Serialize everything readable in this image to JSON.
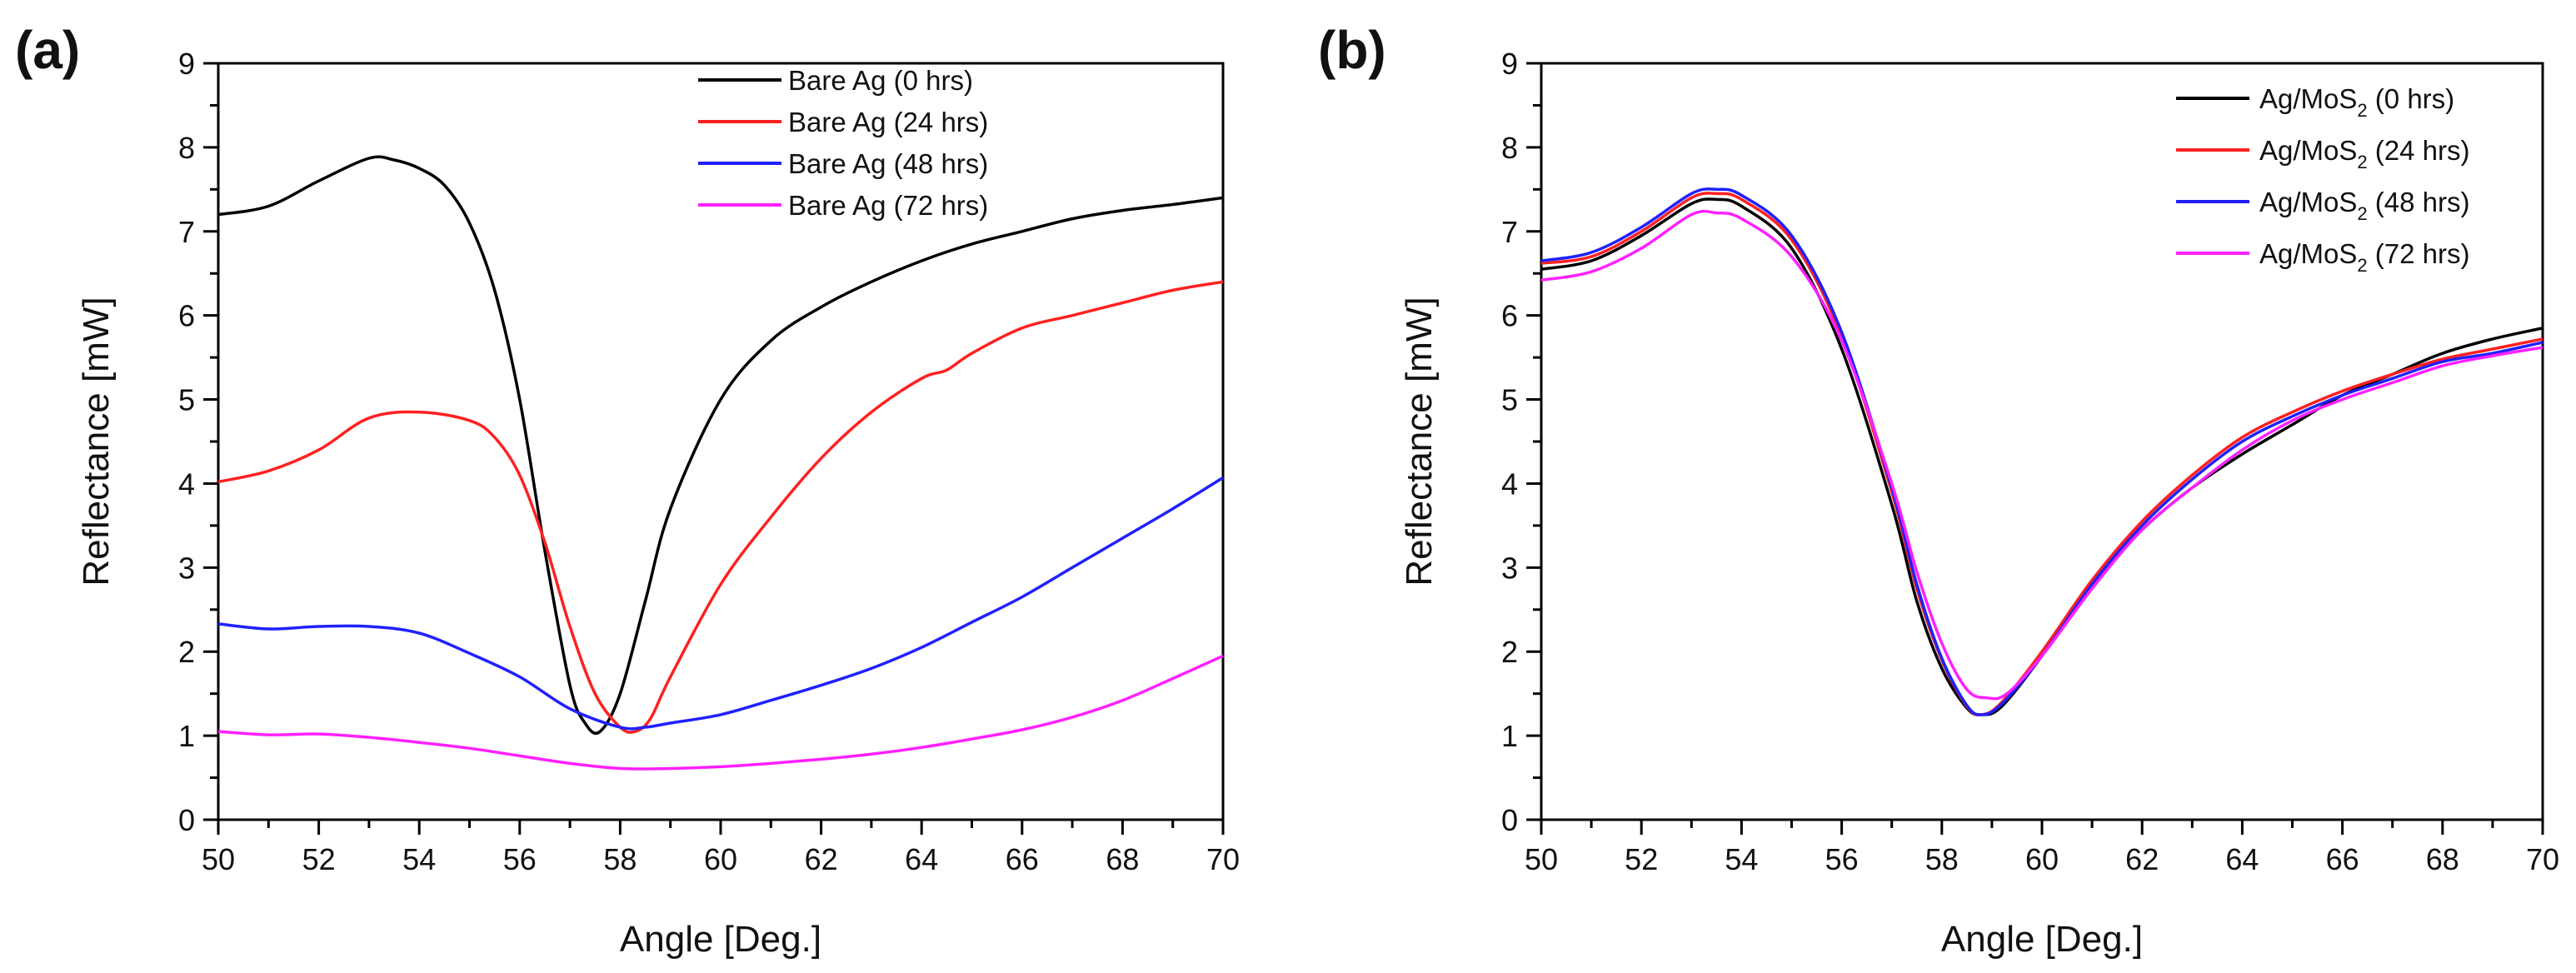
{
  "chart_data": [
    {
      "type": "line",
      "panel_label": "(a)",
      "xlabel": "Angle [Deg.]",
      "ylabel": "Reflectance [mW]",
      "xlim": [
        50,
        70
      ],
      "ylim": [
        0,
        9
      ],
      "xticks": [
        "50",
        "52",
        "54",
        "56",
        "58",
        "60",
        "62",
        "64",
        "66",
        "68",
        "70"
      ],
      "yticks": [
        "0",
        "1",
        "2",
        "3",
        "4",
        "5",
        "6",
        "7",
        "8",
        "9"
      ],
      "legend_position": "top-right",
      "series": [
        {
          "name": "Bare Ag (0 hrs)",
          "legend_main": "Bare Ag (0 hrs)",
          "legend_sub": "",
          "legend_tail": "",
          "color": "#000000",
          "x": [
            50,
            51,
            52,
            53,
            53.5,
            54,
            54.5,
            55,
            55.5,
            56,
            56.5,
            57,
            57.3,
            57.6,
            58,
            58.5,
            59,
            60,
            61,
            62,
            63,
            64,
            65,
            66,
            67,
            68,
            69,
            70
          ],
          "y": [
            7.2,
            7.3,
            7.6,
            7.87,
            7.85,
            7.75,
            7.55,
            7.1,
            6.3,
            5.0,
            3.2,
            1.6,
            1.15,
            1.05,
            1.5,
            2.6,
            3.7,
            5.0,
            5.7,
            6.1,
            6.4,
            6.65,
            6.85,
            7.0,
            7.15,
            7.25,
            7.32,
            7.4
          ]
        },
        {
          "name": "Bare Ag (24 hrs)",
          "legend_main": "Bare Ag (24 hrs)",
          "legend_sub": "",
          "legend_tail": "",
          "color": "#ff2020",
          "x": [
            50,
            51,
            52,
            53,
            54,
            55,
            55.5,
            56,
            56.5,
            57,
            57.5,
            58,
            58.3,
            58.6,
            59,
            60,
            61,
            62,
            63,
            64,
            64.5,
            65,
            66,
            67,
            68,
            69,
            70
          ],
          "y": [
            4.02,
            4.15,
            4.4,
            4.78,
            4.85,
            4.75,
            4.55,
            4.1,
            3.3,
            2.3,
            1.5,
            1.1,
            1.05,
            1.2,
            1.7,
            2.8,
            3.6,
            4.3,
            4.85,
            5.25,
            5.35,
            5.55,
            5.85,
            6.0,
            6.15,
            6.3,
            6.4
          ]
        },
        {
          "name": "Bare Ag (48 hrs)",
          "legend_main": "Bare Ag (48 hrs)",
          "legend_sub": "",
          "legend_tail": "",
          "color": "#2020ff",
          "x": [
            50,
            51,
            52,
            53,
            54,
            55,
            56,
            57,
            58,
            58.5,
            59,
            60,
            61,
            62,
            63,
            64,
            65,
            66,
            67,
            68,
            69,
            70
          ],
          "y": [
            2.33,
            2.27,
            2.3,
            2.3,
            2.22,
            1.98,
            1.7,
            1.32,
            1.1,
            1.1,
            1.15,
            1.25,
            1.42,
            1.6,
            1.8,
            2.05,
            2.35,
            2.65,
            3.0,
            3.35,
            3.7,
            4.07
          ]
        },
        {
          "name": "Bare Ag (72 hrs)",
          "legend_main": "Bare Ag (72 hrs)",
          "legend_sub": "",
          "legend_tail": "",
          "color": "#ff20ff",
          "x": [
            50,
            51,
            52,
            53,
            54,
            55,
            56,
            57,
            58,
            59,
            60,
            61,
            62,
            63,
            64,
            65,
            66,
            67,
            68,
            69,
            70
          ],
          "y": [
            1.05,
            1.01,
            1.02,
            0.98,
            0.92,
            0.85,
            0.76,
            0.67,
            0.61,
            0.61,
            0.63,
            0.67,
            0.72,
            0.78,
            0.86,
            0.96,
            1.07,
            1.22,
            1.42,
            1.68,
            1.95
          ]
        }
      ]
    },
    {
      "type": "line",
      "panel_label": "(b)",
      "xlabel": "Angle [Deg.]",
      "ylabel": "Reflectance [mW]",
      "xlim": [
        50,
        70
      ],
      "ylim": [
        0,
        9
      ],
      "xticks": [
        "50",
        "52",
        "54",
        "56",
        "58",
        "60",
        "62",
        "64",
        "66",
        "68",
        "70"
      ],
      "yticks": [
        "0",
        "1",
        "2",
        "3",
        "4",
        "5",
        "6",
        "7",
        "8",
        "9"
      ],
      "legend_position": "top-right",
      "series": [
        {
          "name": "Ag/MoS2 (0 hrs)",
          "legend_main": "Ag/MoS",
          "legend_sub": "2",
          "legend_tail": " (0 hrs)",
          "color": "#000000",
          "x": [
            50,
            51,
            52,
            53,
            53.5,
            54,
            55,
            56,
            57,
            57.5,
            58,
            58.5,
            58.8,
            59.2,
            60,
            61,
            62,
            63,
            64,
            65,
            66,
            67,
            68,
            69,
            70
          ],
          "y": [
            6.55,
            6.65,
            6.95,
            7.33,
            7.38,
            7.3,
            6.8,
            5.6,
            3.75,
            2.6,
            1.8,
            1.33,
            1.25,
            1.35,
            1.95,
            2.8,
            3.45,
            3.95,
            4.35,
            4.7,
            5.05,
            5.3,
            5.55,
            5.72,
            5.85
          ]
        },
        {
          "name": "Ag/MoS2 (24 hrs)",
          "legend_main": "Ag/MoS",
          "legend_sub": "2",
          "legend_tail": " (24 hrs)",
          "color": "#ff2020",
          "x": [
            50,
            51,
            52,
            53,
            53.5,
            54,
            55,
            56,
            57,
            57.5,
            58,
            58.5,
            58.8,
            59.2,
            60,
            61,
            62,
            63,
            64,
            65,
            66,
            67,
            68,
            69,
            70
          ],
          "y": [
            6.62,
            6.7,
            7.0,
            7.4,
            7.45,
            7.38,
            6.9,
            5.75,
            3.9,
            2.75,
            1.9,
            1.35,
            1.25,
            1.4,
            2.0,
            2.85,
            3.55,
            4.1,
            4.55,
            4.85,
            5.1,
            5.3,
            5.48,
            5.6,
            5.72
          ]
        },
        {
          "name": "Ag/MoS2 (48 hrs)",
          "legend_main": "Ag/MoS",
          "legend_sub": "2",
          "legend_tail": " (48 hrs)",
          "color": "#2020ff",
          "x": [
            50,
            51,
            52,
            53,
            53.5,
            54,
            55,
            56,
            57,
            57.5,
            58,
            58.5,
            58.8,
            59.2,
            60,
            61,
            62,
            63,
            64,
            65,
            66,
            67,
            68,
            69,
            70
          ],
          "y": [
            6.65,
            6.75,
            7.05,
            7.45,
            7.5,
            7.43,
            6.95,
            5.8,
            3.95,
            2.8,
            1.92,
            1.36,
            1.25,
            1.38,
            1.95,
            2.8,
            3.5,
            4.05,
            4.5,
            4.8,
            5.05,
            5.25,
            5.45,
            5.55,
            5.68
          ]
        },
        {
          "name": "Ag/MoS2 (72 hrs)",
          "legend_main": "Ag/MoS",
          "legend_sub": "2",
          "legend_tail": " (72 hrs)",
          "color": "#ff20ff",
          "x": [
            50,
            51,
            52,
            53,
            53.5,
            54,
            55,
            56,
            57,
            57.5,
            58,
            58.5,
            58.9,
            59.3,
            60,
            61,
            62,
            63,
            64,
            65,
            66,
            67,
            68,
            69,
            70
          ],
          "y": [
            6.42,
            6.52,
            6.8,
            7.2,
            7.22,
            7.15,
            6.7,
            5.7,
            4.0,
            2.95,
            2.1,
            1.55,
            1.45,
            1.5,
            1.95,
            2.75,
            3.45,
            3.95,
            4.4,
            4.75,
            5.0,
            5.2,
            5.4,
            5.52,
            5.62
          ]
        }
      ]
    }
  ]
}
